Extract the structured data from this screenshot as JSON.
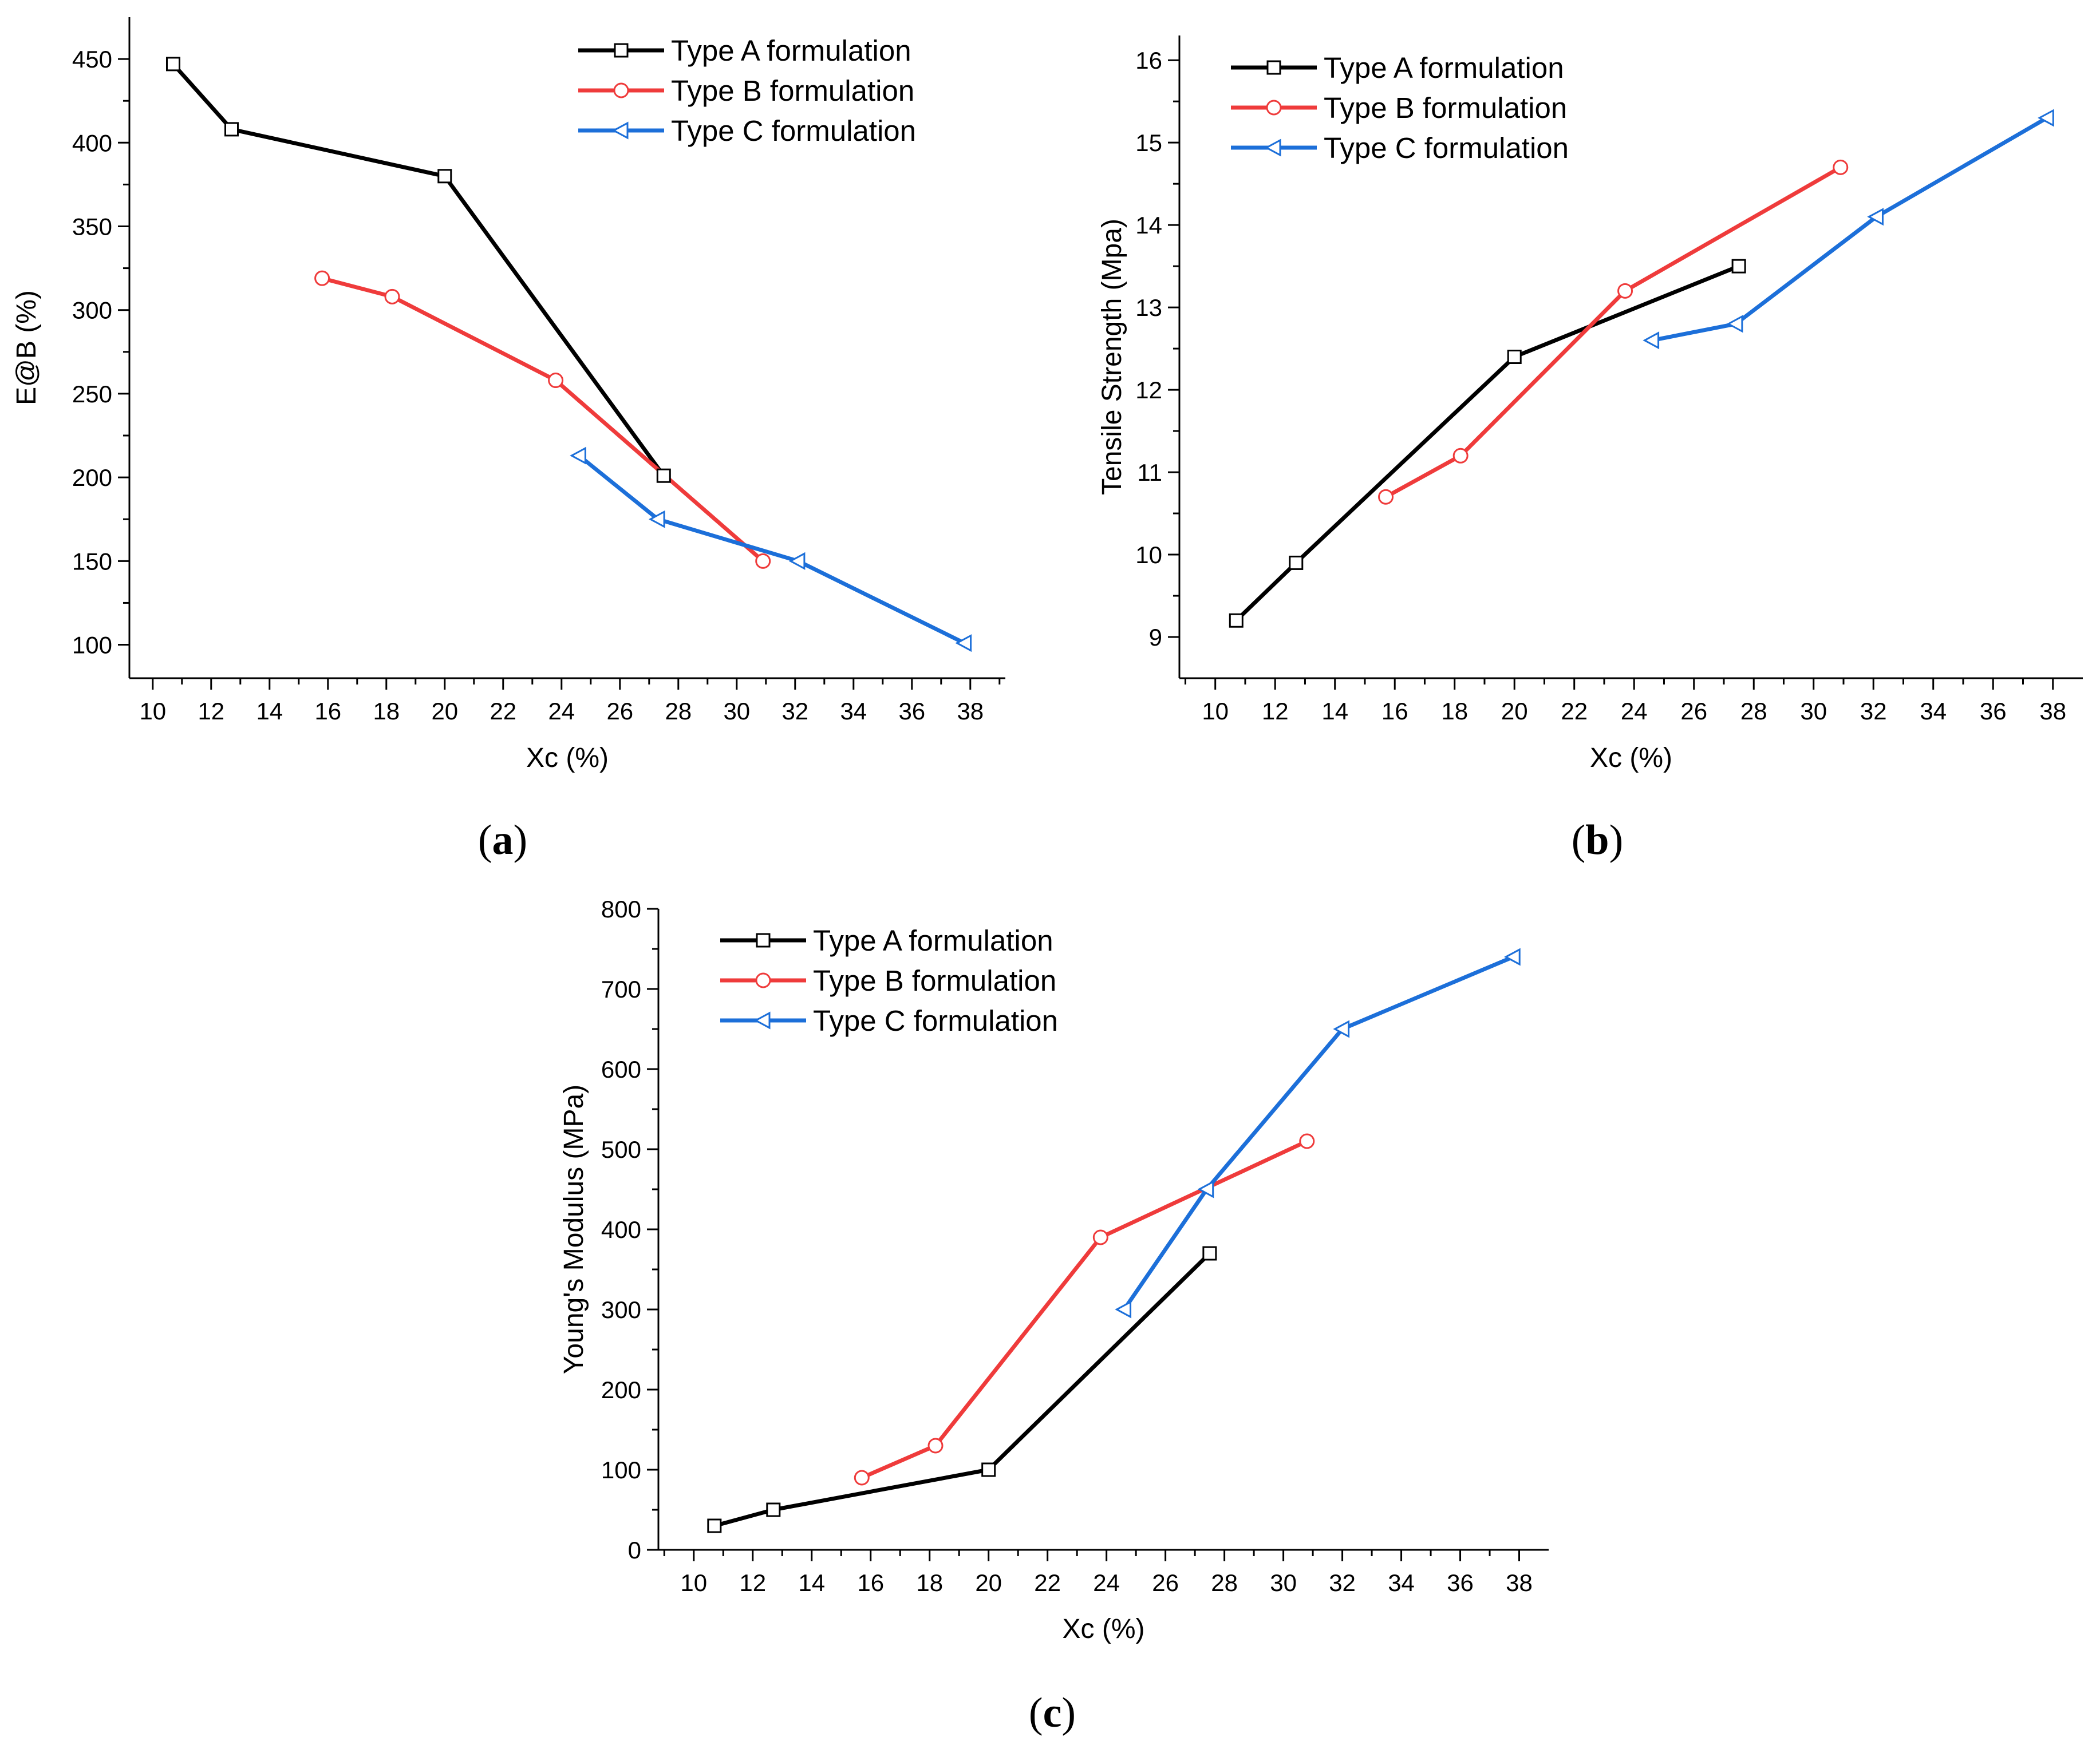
{
  "chart_data": [
    {
      "type": "line",
      "panel_label": "a",
      "xlabel": "Xc (%)",
      "ylabel": "E@B (%)",
      "xlim": [
        9.2,
        39.2
      ],
      "ylim": [
        80,
        475
      ],
      "xticks": [
        10,
        12,
        14,
        16,
        18,
        20,
        22,
        24,
        26,
        28,
        30,
        32,
        34,
        36,
        38
      ],
      "yticks": [
        100,
        150,
        200,
        250,
        300,
        350,
        400,
        450
      ],
      "legend": "top-right",
      "series": [
        {
          "name": "Type A formulation",
          "marker": "square",
          "color": "#000000",
          "points": [
            [
              10.7,
              447
            ],
            [
              12.7,
              408
            ],
            [
              20.0,
              380
            ],
            [
              27.5,
              201
            ]
          ]
        },
        {
          "name": "Type B formulation",
          "marker": "circle",
          "color": "#ef3b3b",
          "points": [
            [
              15.8,
              319
            ],
            [
              18.2,
              308
            ],
            [
              23.8,
              258
            ],
            [
              30.9,
              150
            ]
          ]
        },
        {
          "name": "Type C formulation",
          "marker": "triangle-left",
          "color": "#1c6fd9",
          "points": [
            [
              24.6,
              213
            ],
            [
              27.3,
              175
            ],
            [
              32.1,
              150
            ],
            [
              37.8,
              101
            ]
          ]
        }
      ]
    },
    {
      "type": "line",
      "panel_label": "b",
      "xlabel": "Xc (%)",
      "ylabel": "Tensile Strength (Mpa)",
      "xlim": [
        8.8,
        39.0
      ],
      "ylim": [
        8.5,
        16.3
      ],
      "xticks": [
        10,
        12,
        14,
        16,
        18,
        20,
        22,
        24,
        26,
        28,
        30,
        32,
        34,
        36,
        38
      ],
      "yticks": [
        9,
        10,
        11,
        12,
        13,
        14,
        15,
        16
      ],
      "legend": "top-left",
      "series": [
        {
          "name": "Type A formulation",
          "marker": "square",
          "color": "#000000",
          "points": [
            [
              10.7,
              9.2
            ],
            [
              12.7,
              9.9
            ],
            [
              20.0,
              12.4
            ],
            [
              27.5,
              13.5
            ]
          ]
        },
        {
          "name": "Type B formulation",
          "marker": "circle",
          "color": "#ef3b3b",
          "points": [
            [
              15.7,
              10.7
            ],
            [
              18.2,
              11.2
            ],
            [
              23.7,
              13.2
            ],
            [
              30.9,
              14.7
            ]
          ]
        },
        {
          "name": "Type C formulation",
          "marker": "triangle-left",
          "color": "#1c6fd9",
          "points": [
            [
              24.6,
              12.6
            ],
            [
              27.4,
              12.8
            ],
            [
              32.1,
              14.1
            ],
            [
              37.8,
              15.3
            ]
          ]
        }
      ]
    },
    {
      "type": "line",
      "panel_label": "c",
      "xlabel": "Xc (%)",
      "ylabel": "Young's Modulus (MPa)",
      "xlim": [
        8.8,
        39.0
      ],
      "ylim": [
        0,
        800
      ],
      "xticks": [
        10,
        12,
        14,
        16,
        18,
        20,
        22,
        24,
        26,
        28,
        30,
        32,
        34,
        36,
        38
      ],
      "yticks": [
        0,
        100,
        200,
        300,
        400,
        500,
        600,
        700,
        800
      ],
      "legend": "top-left",
      "series": [
        {
          "name": "Type A formulation",
          "marker": "square",
          "color": "#000000",
          "points": [
            [
              10.7,
              30
            ],
            [
              12.7,
              50
            ],
            [
              20.0,
              100
            ],
            [
              27.5,
              370
            ]
          ]
        },
        {
          "name": "Type B formulation",
          "marker": "circle",
          "color": "#ef3b3b",
          "points": [
            [
              15.7,
              90
            ],
            [
              18.2,
              130
            ],
            [
              23.8,
              390
            ],
            [
              30.8,
              510
            ]
          ]
        },
        {
          "name": "Type C formulation",
          "marker": "triangle-left",
          "color": "#1c6fd9",
          "points": [
            [
              24.6,
              300
            ],
            [
              27.4,
              450
            ],
            [
              32.0,
              650
            ],
            [
              37.8,
              740
            ]
          ]
        }
      ]
    }
  ]
}
